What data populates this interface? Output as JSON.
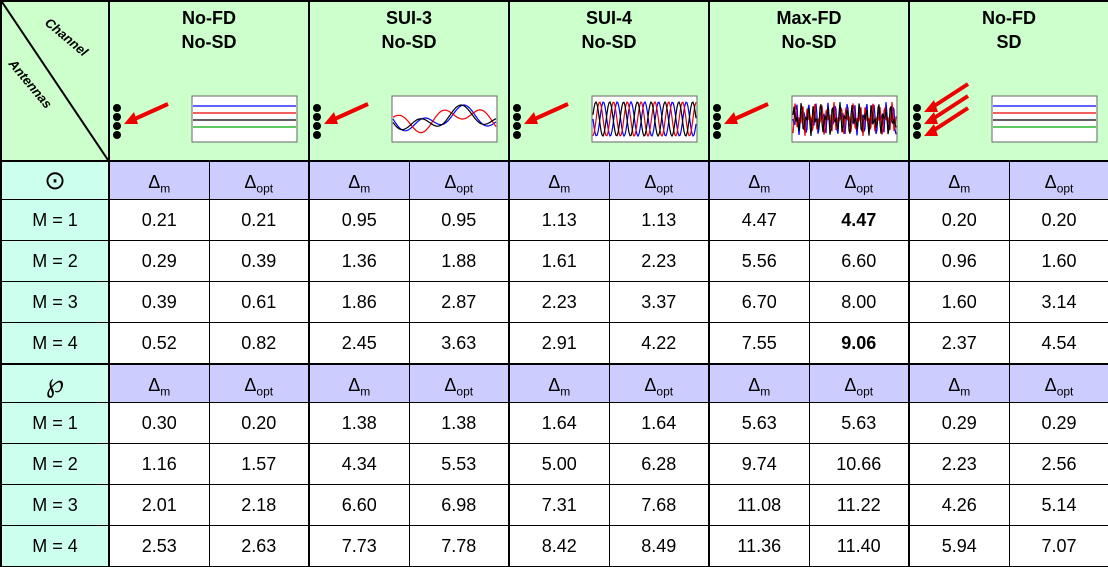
{
  "corner": {
    "top": "Channel",
    "bottom": "Antennas"
  },
  "columns": [
    {
      "line1": "No-FD",
      "line2": "No-SD"
    },
    {
      "line1": "SUI-3",
      "line2": "No-SD"
    },
    {
      "line1": "SUI-4",
      "line2": "No-SD"
    },
    {
      "line1": "Max-FD",
      "line2": "No-SD"
    },
    {
      "line1": "No-FD",
      "line2": "SD"
    }
  ],
  "subheaders": [
    {
      "symbol": "Δ",
      "sub": "m"
    },
    {
      "symbol": "Δ",
      "sub": "opt"
    }
  ],
  "sections": [
    {
      "symbol": "⊙",
      "rows": [
        {
          "label": "M = 1",
          "cells": [
            "0.21",
            "0.21",
            "0.95",
            "0.95",
            "1.13",
            "1.13",
            "4.47",
            "4.47",
            "0.20",
            "0.20"
          ]
        },
        {
          "label": "M = 2",
          "cells": [
            "0.29",
            "0.39",
            "1.36",
            "1.88",
            "1.61",
            "2.23",
            "5.56",
            "6.60",
            "0.96",
            "1.60"
          ]
        },
        {
          "label": "M = 3",
          "cells": [
            "0.39",
            "0.61",
            "1.86",
            "2.87",
            "2.23",
            "3.37",
            "6.70",
            "8.00",
            "1.60",
            "3.14"
          ]
        },
        {
          "label": "M = 4",
          "cells": [
            "0.52",
            "0.82",
            "2.45",
            "3.63",
            "2.91",
            "4.22",
            "7.55",
            "9.06",
            "2.37",
            "4.54"
          ]
        }
      ],
      "bold": [
        [
          0,
          7
        ],
        [
          3,
          7
        ]
      ]
    },
    {
      "symbol": "℘",
      "rows": [
        {
          "label": "M = 1",
          "cells": [
            "0.30",
            "0.20",
            "1.38",
            "1.38",
            "1.64",
            "1.64",
            "5.63",
            "5.63",
            "0.29",
            "0.29"
          ]
        },
        {
          "label": "M = 2",
          "cells": [
            "1.16",
            "1.57",
            "4.34",
            "5.53",
            "5.00",
            "6.28",
            "9.74",
            "10.66",
            "2.23",
            "2.56"
          ]
        },
        {
          "label": "M = 3",
          "cells": [
            "2.01",
            "2.18",
            "6.60",
            "6.98",
            "7.31",
            "7.68",
            "11.08",
            "11.22",
            "4.26",
            "5.14"
          ]
        },
        {
          "label": "M = 4",
          "cells": [
            "2.53",
            "2.63",
            "7.73",
            "7.78",
            "8.42",
            "8.49",
            "11.36",
            "11.40",
            "5.94",
            "7.07"
          ]
        }
      ],
      "bold": []
    }
  ]
}
